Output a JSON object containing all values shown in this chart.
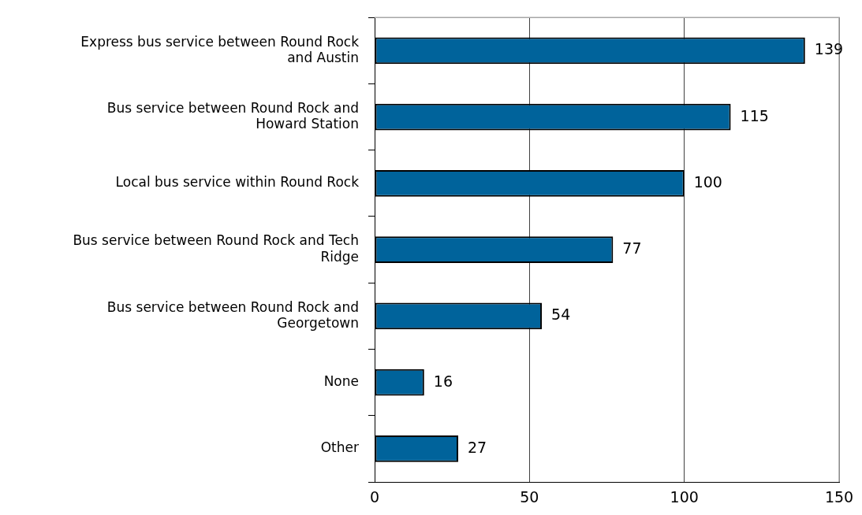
{
  "chart_data": {
    "type": "bar",
    "orientation": "horizontal",
    "categories": [
      "Express bus service between Round Rock and Austin",
      "Bus service between Round Rock and Howard Station",
      "Local bus service within Round Rock",
      "Bus service between Round Rock and Tech Ridge",
      "Bus service between Round Rock and Georgetown",
      "None",
      "Other"
    ],
    "values": [
      139,
      115,
      100,
      77,
      54,
      16,
      27
    ],
    "color": "#00639b",
    "xlim": [
      0,
      150
    ],
    "xticks": [
      0,
      50,
      100,
      150
    ],
    "grid": "x",
    "data_labels": true
  }
}
